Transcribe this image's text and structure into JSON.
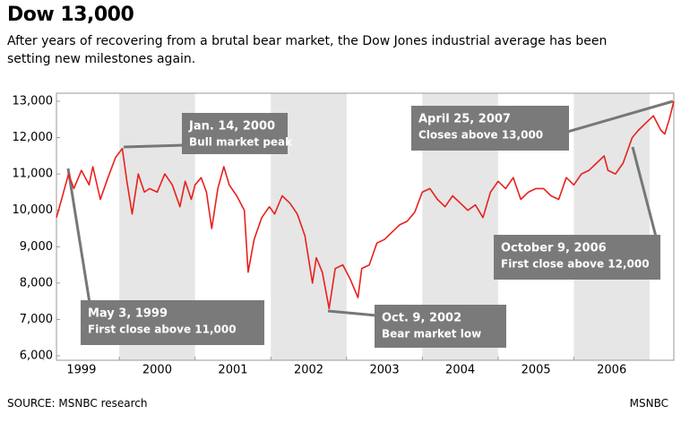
{
  "chart_data": {
    "type": "line",
    "title": "Dow 13,000",
    "subtitle": "After years of recovering from a brutal bear market, the Dow Jones industrial average has been setting new milestones again.",
    "source": "SOURCE: MSNBC research",
    "credit": "MSNBC",
    "xlim": [
      1999.17,
      2007.32
    ],
    "xticks": [
      1999,
      2000,
      2001,
      2002,
      2003,
      2004,
      2005,
      2006
    ],
    "ylim": [
      6000,
      13000
    ],
    "yticks": [
      {
        "value": 6000,
        "label": "6,000"
      },
      {
        "value": 7000,
        "label": "7,000"
      },
      {
        "value": 8000,
        "label": "8,000"
      },
      {
        "value": 9000,
        "label": "9,000"
      },
      {
        "value": 10000,
        "label": "10,000"
      },
      {
        "value": 11000,
        "label": "11,000"
      },
      {
        "value": 12000,
        "label": "12,000"
      },
      {
        "value": 13000,
        "label": "13,000"
      }
    ],
    "series": [
      {
        "color": "#e8211c",
        "x": [
          1999.17,
          1999.25,
          1999.33,
          1999.4,
          1999.5,
          1999.6,
          1999.65,
          1999.75,
          1999.85,
          1999.95,
          2000.04,
          2000.1,
          2000.17,
          2000.25,
          2000.33,
          2000.4,
          2000.5,
          2000.6,
          2000.7,
          2000.8,
          2000.87,
          2000.95,
          2001.0,
          2001.08,
          2001.15,
          2001.22,
          2001.3,
          2001.38,
          2001.45,
          2001.55,
          2001.65,
          2001.7,
          2001.78,
          2001.88,
          2001.98,
          2002.05,
          2002.15,
          2002.25,
          2002.35,
          2002.45,
          2002.55,
          2002.6,
          2002.68,
          2002.77,
          2002.85,
          2002.95,
          2003.05,
          2003.15,
          2003.2,
          2003.3,
          2003.4,
          2003.5,
          2003.6,
          2003.7,
          2003.8,
          2003.9,
          2004.0,
          2004.1,
          2004.2,
          2004.3,
          2004.4,
          2004.5,
          2004.6,
          2004.7,
          2004.8,
          2004.9,
          2005.0,
          2005.1,
          2005.2,
          2005.3,
          2005.4,
          2005.5,
          2005.6,
          2005.7,
          2005.8,
          2005.9,
          2006.0,
          2006.1,
          2006.2,
          2006.3,
          2006.4,
          2006.45,
          2006.55,
          2006.65,
          2006.77,
          2006.85,
          2006.95,
          2007.05,
          2007.15,
          2007.2,
          2007.26,
          2007.32
        ],
        "values": [
          9800,
          10400,
          11000,
          10600,
          11100,
          10700,
          11200,
          10300,
          10900,
          11450,
          11700,
          10800,
          9900,
          11000,
          10500,
          10600,
          10500,
          11000,
          10700,
          10100,
          10800,
          10300,
          10700,
          10900,
          10500,
          9500,
          10600,
          11200,
          10700,
          10400,
          10000,
          8300,
          9200,
          9800,
          10100,
          9900,
          10400,
          10200,
          9900,
          9300,
          8000,
          8700,
          8300,
          7300,
          8400,
          8500,
          8100,
          7600,
          8400,
          8500,
          9100,
          9200,
          9400,
          9600,
          9700,
          9950,
          10500,
          10600,
          10300,
          10100,
          10400,
          10200,
          10000,
          10150,
          9800,
          10500,
          10800,
          10600,
          10900,
          10300,
          10500,
          10600,
          10600,
          10400,
          10300,
          10900,
          10700,
          11000,
          11100,
          11300,
          11500,
          11100,
          11000,
          11300,
          12000,
          12200,
          12400,
          12600,
          12200,
          12100,
          12500,
          13000
        ]
      }
    ],
    "annotations": [
      {
        "title": "Jan. 14, 2000",
        "text": "Bull market peak"
      },
      {
        "title": "April 25, 2007",
        "text": "Closes above 13,000"
      },
      {
        "title": "October 9, 2006",
        "text": "First close above 12,000"
      },
      {
        "title": "May 3, 1999",
        "text": "First close above 11,000"
      },
      {
        "title": "Oct. 9, 2002",
        "text": "Bear market low"
      }
    ]
  }
}
